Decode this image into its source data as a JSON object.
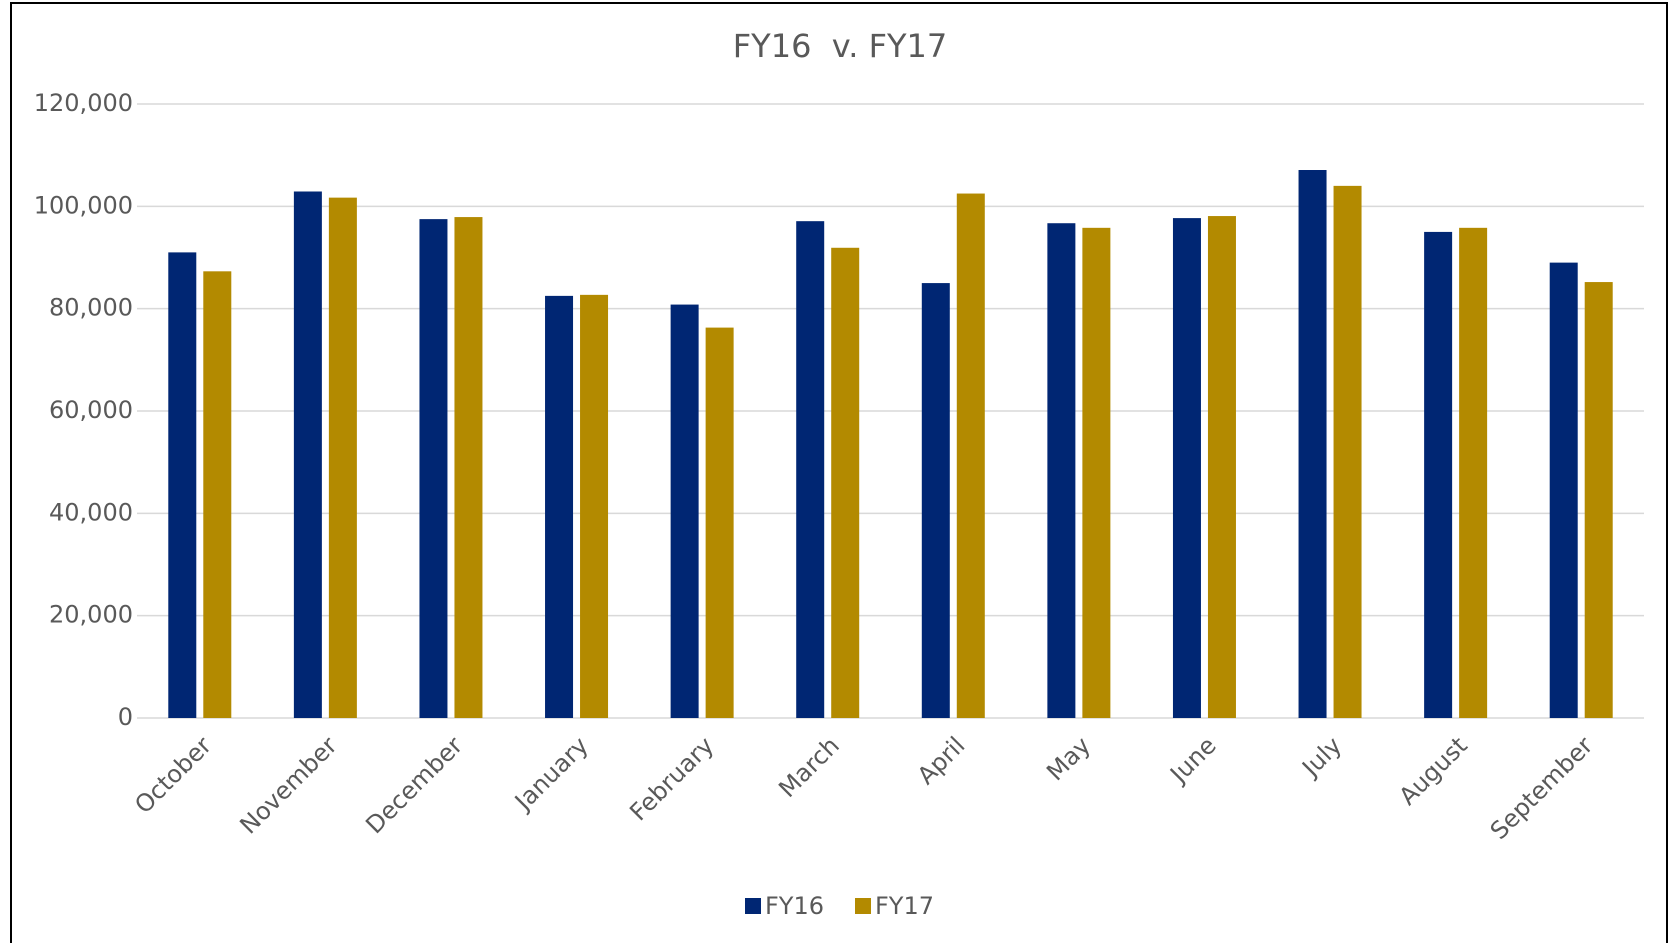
{
  "chart_data": {
    "type": "bar",
    "title": "FY16  v. FY17",
    "categories": [
      "October",
      "November",
      "December",
      "January",
      "February",
      "March",
      "April",
      "May",
      "June",
      "July",
      "August",
      "September"
    ],
    "series": [
      {
        "name": "FY16",
        "color": "#002673",
        "values": [
          91000,
          102900,
          97500,
          82500,
          80800,
          97100,
          85000,
          96700,
          97700,
          107100,
          95000,
          89000
        ]
      },
      {
        "name": "FY17",
        "color": "#b38a00",
        "values": [
          87300,
          101700,
          97900,
          82700,
          76300,
          91900,
          102500,
          95800,
          98100,
          104000,
          95800,
          85200
        ]
      }
    ],
    "ylim": [
      0,
      120000
    ],
    "yticks": [
      0,
      {
        "value": 20000,
        "label": "20,000"
      },
      {
        "value": 40000,
        "label": "40,000"
      },
      {
        "value": 60000,
        "label": "60,000"
      },
      {
        "value": 80000,
        "label": "80,000"
      },
      {
        "value": 100000,
        "label": "100,000"
      },
      {
        "value": 120000,
        "label": "120,000"
      }
    ],
    "grid": true,
    "legend": "bottom"
  }
}
